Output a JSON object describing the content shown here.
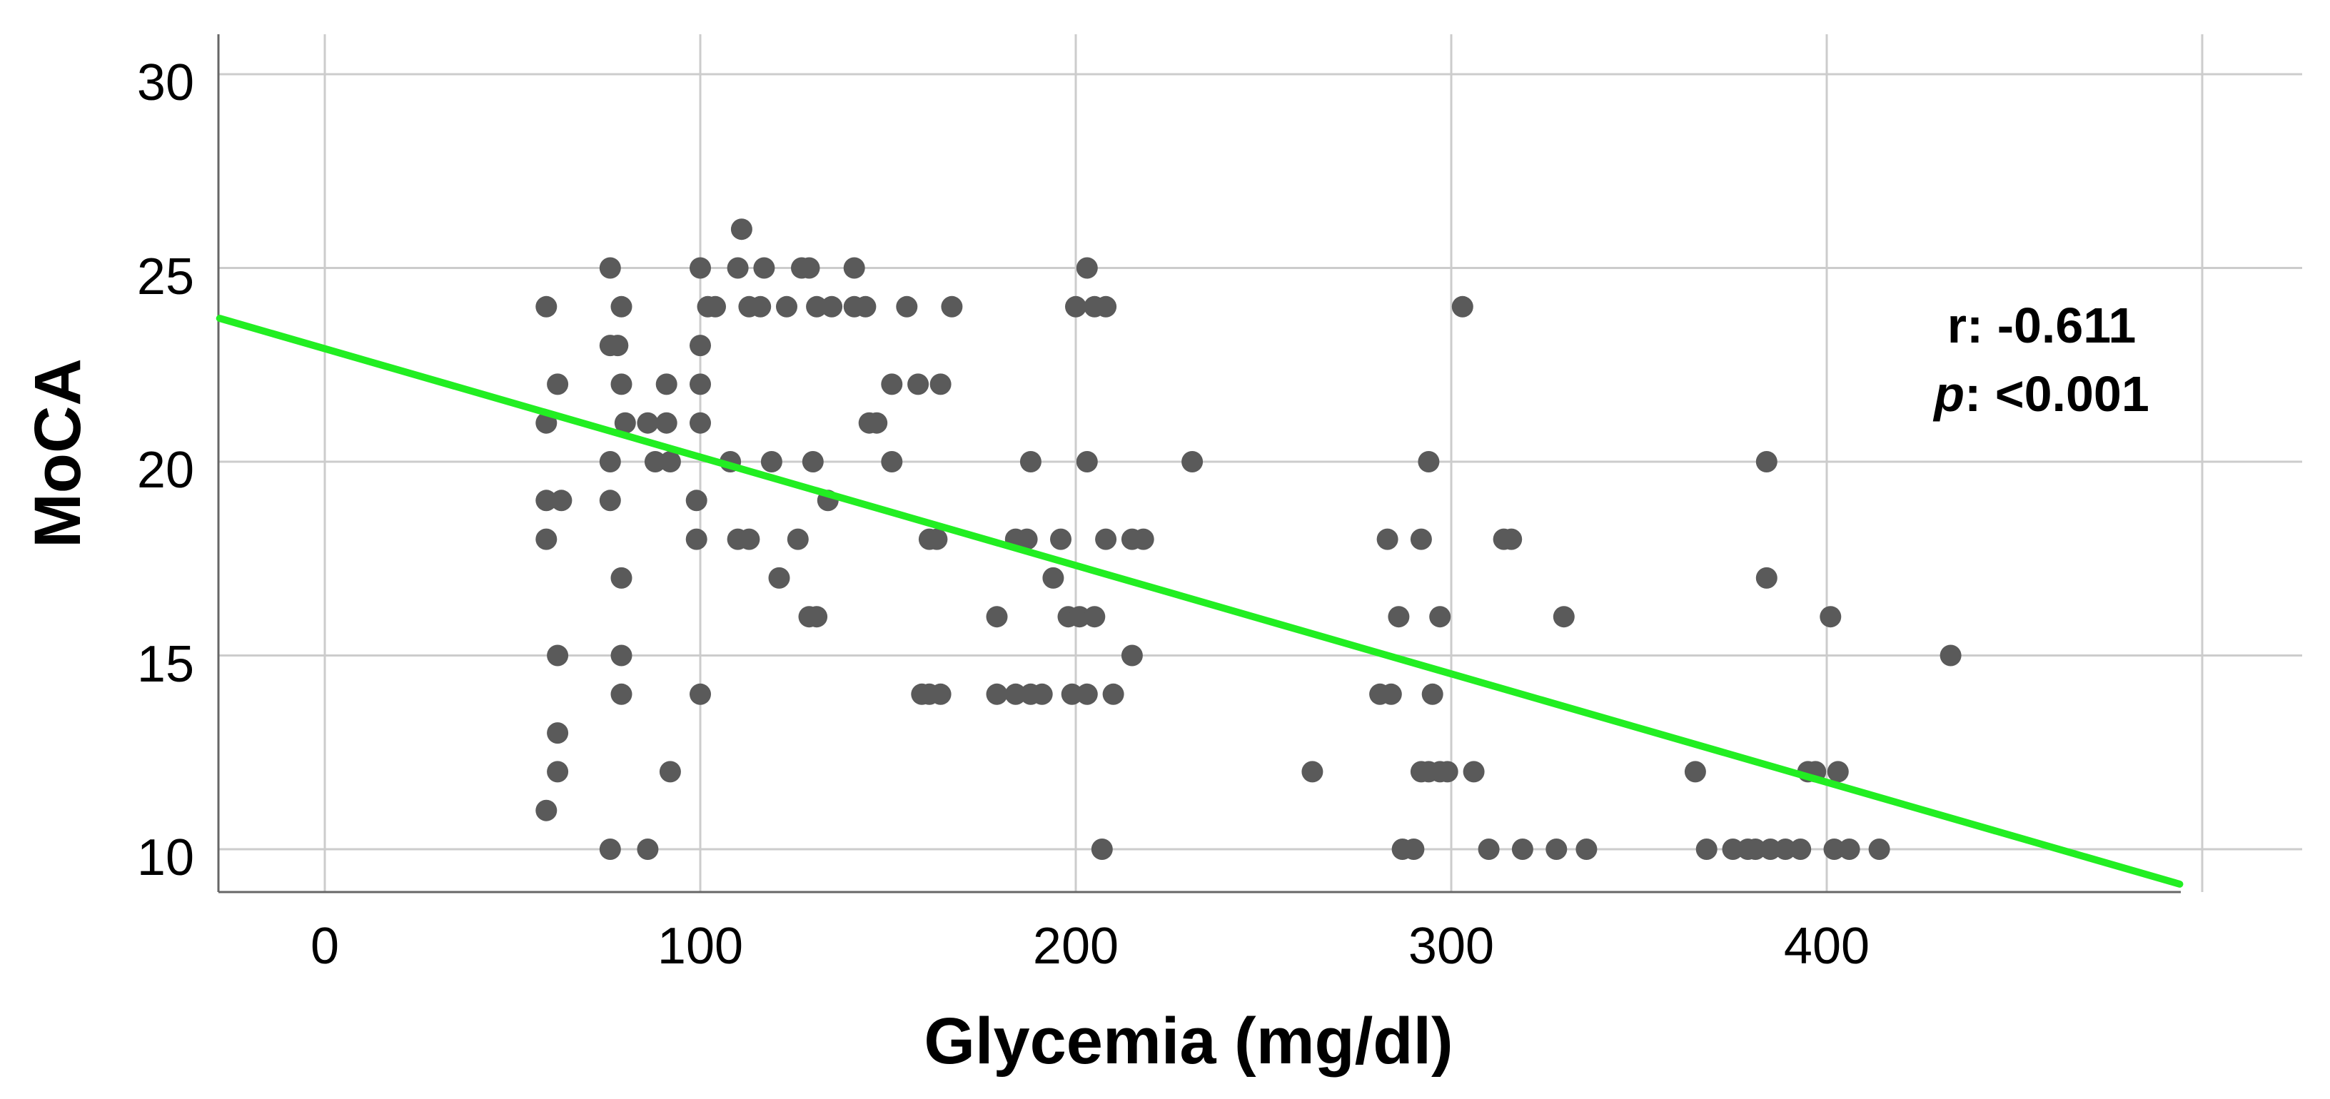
{
  "chart_data": {
    "type": "scatter",
    "title": "",
    "xlabel": "Glycemia (mg/dl)",
    "ylabel": "MoCA",
    "xlim": [
      -28,
      530
    ],
    "ylim": [
      9,
      31.2
    ],
    "xticks": [
      "0",
      "100",
      "200",
      "300",
      "400"
    ],
    "yticks": [
      "30",
      "25",
      "20",
      "15",
      "10"
    ],
    "grid": true,
    "colors": {
      "points": "#5a5a5a",
      "fit_line": "#22ee22",
      "grid": "#cccccc",
      "axis": "#666666"
    },
    "annotation": {
      "r_label": "r: -0.611",
      "p_symbol": "p",
      "p_value": ": <0.001"
    },
    "fit_line": {
      "x": [
        -28,
        494
      ],
      "y": [
        23.7,
        9.1
      ]
    },
    "points": [
      [
        59,
        24
      ],
      [
        59,
        21
      ],
      [
        59,
        19
      ],
      [
        59,
        18
      ],
      [
        59,
        11
      ],
      [
        62,
        22
      ],
      [
        63,
        19
      ],
      [
        62,
        15
      ],
      [
        62,
        13
      ],
      [
        62,
        12
      ],
      [
        76,
        25
      ],
      [
        76,
        23
      ],
      [
        76,
        20
      ],
      [
        76,
        19
      ],
      [
        76,
        10
      ],
      [
        79,
        24
      ],
      [
        78,
        23
      ],
      [
        79,
        22
      ],
      [
        80,
        21
      ],
      [
        79,
        17
      ],
      [
        79,
        15
      ],
      [
        79,
        14
      ],
      [
        86,
        21
      ],
      [
        88,
        20
      ],
      [
        86,
        10
      ],
      [
        91,
        22
      ],
      [
        91,
        21
      ],
      [
        92,
        20
      ],
      [
        92,
        12
      ],
      [
        100,
        25
      ],
      [
        100,
        23
      ],
      [
        100,
        22
      ],
      [
        100,
        21
      ],
      [
        99,
        19
      ],
      [
        99,
        18
      ],
      [
        100,
        14
      ],
      [
        102,
        24
      ],
      [
        104,
        24
      ],
      [
        110,
        25
      ],
      [
        111,
        26
      ],
      [
        108,
        20
      ],
      [
        110,
        18
      ],
      [
        113,
        18
      ],
      [
        113,
        24
      ],
      [
        116,
        24
      ],
      [
        117,
        25
      ],
      [
        119,
        20
      ],
      [
        121,
        17
      ],
      [
        123,
        24
      ],
      [
        127,
        25
      ],
      [
        129,
        25
      ],
      [
        126,
        18
      ],
      [
        130,
        20
      ],
      [
        129,
        16
      ],
      [
        131,
        16
      ],
      [
        131,
        24
      ],
      [
        135,
        24
      ],
      [
        134,
        19
      ],
      [
        141,
        25
      ],
      [
        141,
        24
      ],
      [
        144,
        24
      ],
      [
        145,
        21
      ],
      [
        147,
        21
      ],
      [
        151,
        22
      ],
      [
        151,
        20
      ],
      [
        155,
        24
      ],
      [
        158,
        22
      ],
      [
        159,
        14
      ],
      [
        161,
        14
      ],
      [
        161,
        18
      ],
      [
        163,
        18
      ],
      [
        164,
        22
      ],
      [
        164,
        14
      ],
      [
        167,
        24
      ],
      [
        179,
        16
      ],
      [
        179,
        14
      ],
      [
        184,
        18
      ],
      [
        184,
        14
      ],
      [
        187,
        18
      ],
      [
        188,
        20
      ],
      [
        188,
        14
      ],
      [
        191,
        14
      ],
      [
        194,
        17
      ],
      [
        196,
        18
      ],
      [
        198,
        16
      ],
      [
        199,
        14
      ],
      [
        201,
        16
      ],
      [
        203,
        14
      ],
      [
        205,
        16
      ],
      [
        200,
        24
      ],
      [
        203,
        25
      ],
      [
        203,
        20
      ],
      [
        205,
        24
      ],
      [
        207,
        10
      ],
      [
        208,
        24
      ],
      [
        208,
        18
      ],
      [
        210,
        14
      ],
      [
        215,
        15
      ],
      [
        215,
        18
      ],
      [
        218,
        18
      ],
      [
        231,
        20
      ],
      [
        263,
        12
      ],
      [
        281,
        14
      ],
      [
        283,
        18
      ],
      [
        284,
        14
      ],
      [
        286,
        16
      ],
      [
        287,
        10
      ],
      [
        290,
        10
      ],
      [
        292,
        12
      ],
      [
        292,
        18
      ],
      [
        294,
        12
      ],
      [
        294,
        20
      ],
      [
        295,
        14
      ],
      [
        297,
        12
      ],
      [
        297,
        16
      ],
      [
        299,
        12
      ],
      [
        303,
        24
      ],
      [
        306,
        12
      ],
      [
        310,
        10
      ],
      [
        314,
        18
      ],
      [
        316,
        18
      ],
      [
        319,
        10
      ],
      [
        328,
        10
      ],
      [
        330,
        16
      ],
      [
        336,
        10
      ],
      [
        365,
        12
      ],
      [
        368,
        10
      ],
      [
        375,
        10
      ],
      [
        379,
        10
      ],
      [
        381,
        10
      ],
      [
        384,
        20
      ],
      [
        384,
        17
      ],
      [
        385,
        10
      ],
      [
        389,
        10
      ],
      [
        393,
        10
      ],
      [
        395,
        12
      ],
      [
        397,
        12
      ],
      [
        401,
        16
      ],
      [
        402,
        10
      ],
      [
        403,
        12
      ],
      [
        406,
        10
      ],
      [
        414,
        10
      ],
      [
        433,
        15
      ]
    ]
  }
}
